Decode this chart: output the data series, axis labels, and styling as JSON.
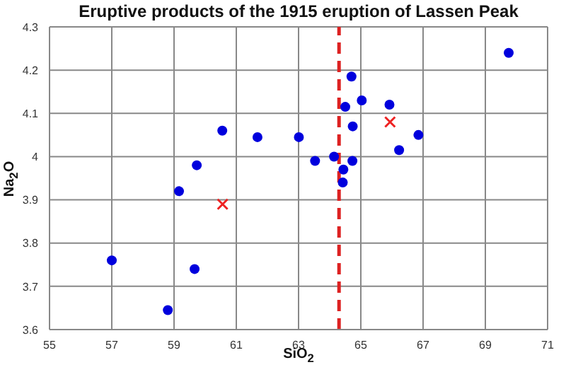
{
  "chart_data": {
    "type": "scatter",
    "title": "Eruptive products of the 1915 eruption of Lassen Peak",
    "xlabel": "SiO$_{2}$",
    "ylabel": "Na$_{2}$O",
    "xlim": [
      55,
      71
    ],
    "xticks": [
      55,
      57,
      59,
      61,
      63,
      65,
      67,
      69,
      71
    ],
    "ylim": [
      3.6,
      4.3
    ],
    "yticks": [
      3.6,
      3.7,
      3.8,
      3.9,
      4,
      4.1,
      4.2,
      4.3
    ],
    "grid": true,
    "legend": false,
    "series": [
      {
        "color": "#0000dd",
        "marker": "circle",
        "x": [
          57.0,
          58.8,
          59.16,
          59.66,
          59.73,
          60.55,
          61.68,
          63.01,
          63.53,
          64.14,
          64.42,
          64.44,
          64.5,
          64.7,
          64.73,
          64.74,
          65.03,
          65.92,
          66.23,
          66.85,
          69.75
        ],
        "values": [
          3.76,
          3.645,
          3.92,
          3.74,
          3.98,
          4.06,
          4.045,
          4.045,
          3.99,
          4.0,
          3.94,
          3.97,
          4.115,
          4.185,
          3.99,
          4.07,
          4.13,
          4.12,
          4.015,
          4.05,
          4.24
        ]
      },
      {
        "color": "#ee2222",
        "marker": "cross",
        "x": [
          60.56,
          65.94
        ],
        "values": [
          3.89,
          4.08
        ]
      }
    ],
    "ref_lines": [
      {
        "axis": "x",
        "value": 64.3,
        "color": "#dd2222",
        "line_style": "dashed"
      }
    ]
  }
}
